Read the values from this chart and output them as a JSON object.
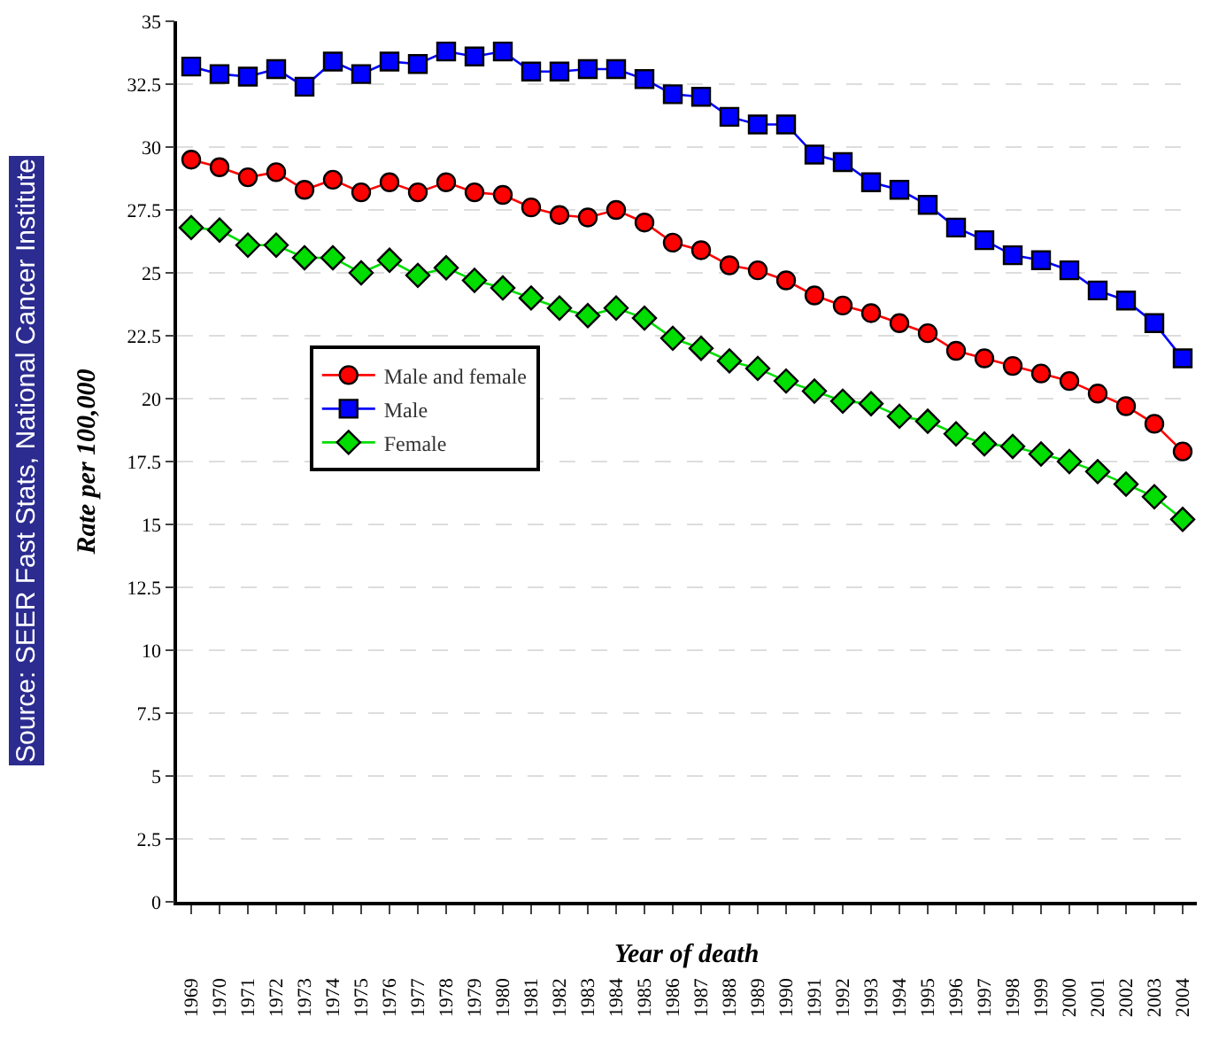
{
  "chart_data": {
    "type": "line",
    "xlabel": "Year of death",
    "ylabel": "Rate per 100,000",
    "annotations": [
      "Source: SEER Fast Stats, National Cancer Institute"
    ],
    "categories": [
      "1969",
      "1970",
      "1971",
      "1972",
      "1973",
      "1974",
      "1975",
      "1976",
      "1977",
      "1978",
      "1979",
      "1980",
      "1981",
      "1982",
      "1983",
      "1984",
      "1985",
      "1986",
      "1987",
      "1988",
      "1989",
      "1990",
      "1991",
      "1992",
      "1993",
      "1994",
      "1995",
      "1996",
      "1997",
      "1998",
      "1999",
      "2000",
      "2001",
      "2002",
      "2003",
      "2004"
    ],
    "series": [
      {
        "name": "Male and female",
        "color": "#ff0000",
        "marker": "circle",
        "values": [
          29.5,
          29.2,
          28.8,
          29.0,
          28.3,
          28.7,
          28.2,
          28.6,
          28.2,
          28.6,
          28.2,
          28.1,
          27.6,
          27.3,
          27.2,
          27.5,
          27.0,
          26.2,
          25.9,
          25.3,
          25.1,
          24.7,
          24.1,
          23.7,
          23.4,
          23.0,
          22.6,
          21.9,
          21.6,
          21.3,
          21.0,
          20.7,
          20.2,
          19.7,
          19.0,
          17.9
        ]
      },
      {
        "name": "Male",
        "color": "#0000ff",
        "marker": "square",
        "values": [
          33.2,
          32.9,
          32.8,
          33.1,
          32.4,
          33.4,
          32.9,
          33.4,
          33.3,
          33.8,
          33.6,
          33.8,
          33.0,
          33.0,
          33.1,
          33.1,
          32.7,
          32.1,
          32.0,
          31.2,
          30.9,
          30.9,
          29.7,
          29.4,
          28.6,
          28.3,
          27.7,
          26.8,
          26.3,
          25.7,
          25.5,
          25.1,
          24.3,
          23.9,
          23.0,
          21.6
        ]
      },
      {
        "name": "Female",
        "color": "#00dd00",
        "marker": "diamond",
        "values": [
          26.8,
          26.7,
          26.1,
          26.1,
          25.6,
          25.6,
          25.0,
          25.5,
          24.9,
          25.2,
          24.7,
          24.4,
          24.0,
          23.6,
          23.3,
          23.6,
          23.2,
          22.4,
          22.0,
          21.5,
          21.2,
          20.7,
          20.3,
          19.9,
          19.8,
          19.3,
          19.1,
          18.6,
          18.2,
          18.1,
          17.8,
          17.5,
          17.1,
          16.6,
          16.1,
          15.2
        ]
      }
    ],
    "ylim": [
      0,
      35
    ],
    "yticks": [
      0,
      2.5,
      5,
      7.5,
      10,
      12.5,
      15,
      17.5,
      20,
      22.5,
      25,
      27.5,
      30,
      32.5,
      35
    ],
    "grid": "y",
    "legend": "left",
    "line_style": "solid"
  }
}
